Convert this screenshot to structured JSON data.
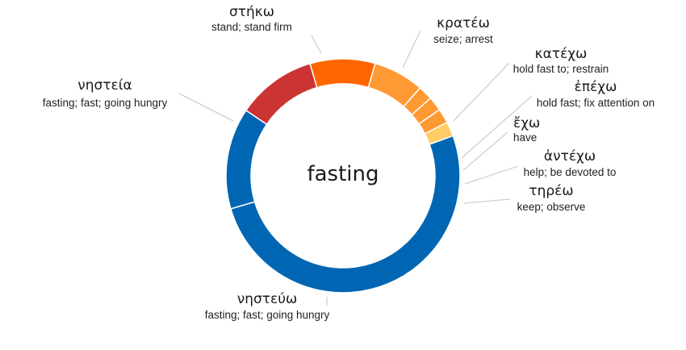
{
  "chart_data": {
    "type": "donut",
    "center_label": "fasting",
    "slices": [
      {
        "word": "στήκω",
        "gloss": "stand; stand firm",
        "value": 11,
        "color": "#cc3333"
      },
      {
        "word": "κρατέω",
        "gloss": "seize; arrest",
        "value": 9,
        "color": "#ff6600"
      },
      {
        "word": "κατέχω",
        "gloss": "hold fast to; restrain",
        "value": 7,
        "color": "#ff9933"
      },
      {
        "word": "ἐπέχω",
        "gloss": "hold fast; fix attention on",
        "value": 2,
        "color": "#ff9933"
      },
      {
        "word": "ἔχω",
        "gloss": "have",
        "value": 2,
        "color": "#ff9933"
      },
      {
        "word": "ἀντέχω",
        "gloss": "help; be devoted to",
        "value": 2,
        "color": "#ff9933"
      },
      {
        "word": "τηρέω",
        "gloss": "keep; observe",
        "value": 2,
        "color": "#ffcc66"
      },
      {
        "word": "νηστεύω",
        "gloss": "fasting; fast; going hungry",
        "value": 51,
        "color": "#0066b3"
      },
      {
        "word": "νηστεία",
        "gloss": "fasting; fast; going hungry",
        "value": 14,
        "color": "#0066b3"
      }
    ]
  }
}
